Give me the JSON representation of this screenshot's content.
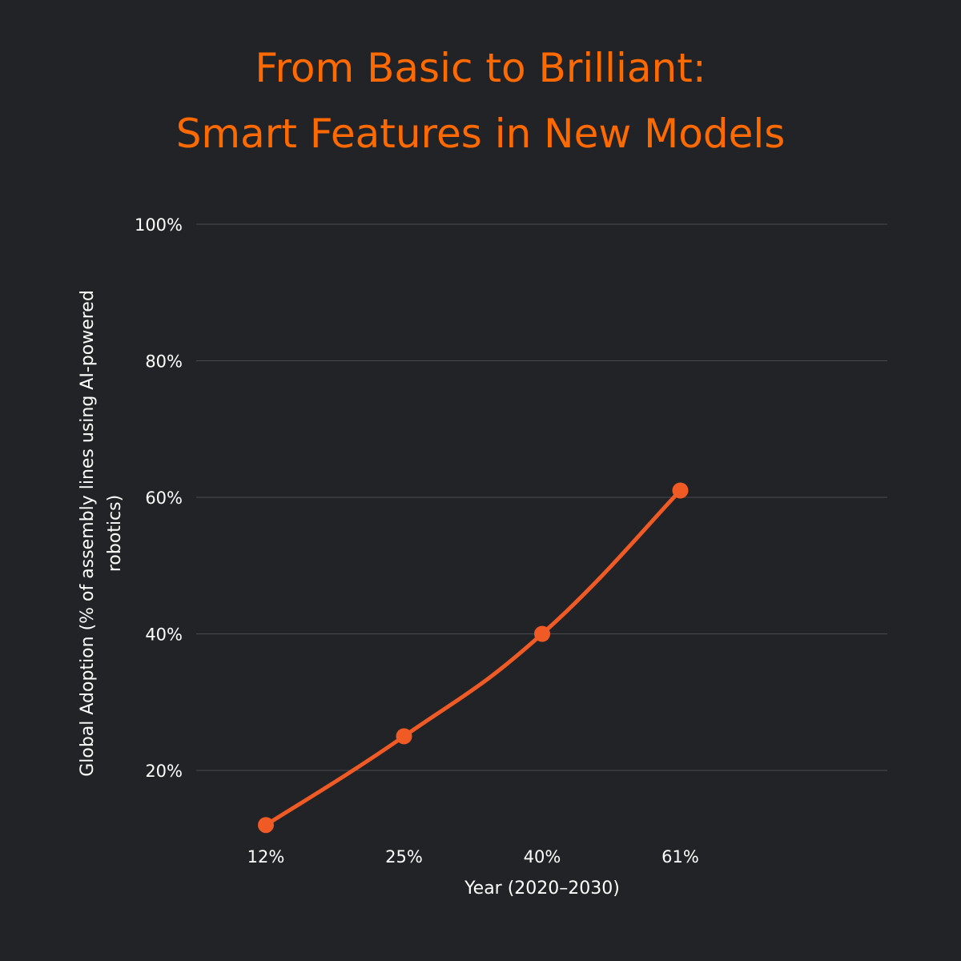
{
  "title": {
    "line1": "From Basic to Brilliant:",
    "line2": "Smart Features in New Models"
  },
  "colors": {
    "background": "#222327",
    "title": "#ff6a00",
    "series": "#f05a24",
    "grid": "#4a4b50",
    "text": "#ffffff"
  },
  "chart_data": {
    "type": "line",
    "title": "From Basic to Brilliant: Smart Features in New Models",
    "xlabel": "Year (2020–2030)",
    "ylabel_lines": [
      "Global Adoption (% of assembly lines using AI-powered",
      "robotics)"
    ],
    "categories": [
      "12%",
      "25%",
      "40%",
      "61%"
    ],
    "values": [
      12,
      25,
      40,
      61
    ],
    "ylim": [
      8,
      100
    ],
    "yticks": [
      20,
      40,
      60,
      80,
      100
    ],
    "ytick_labels": [
      "20%",
      "40%",
      "60%",
      "80%",
      "100%"
    ],
    "grid": "horizontal",
    "legend": "none"
  }
}
